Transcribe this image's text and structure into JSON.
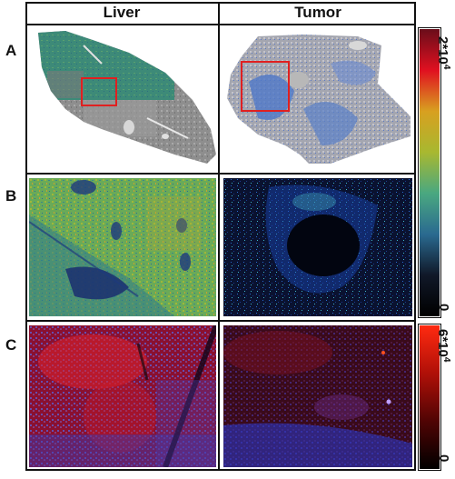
{
  "columns": {
    "left": "Liver",
    "right": "Tumor"
  },
  "rows": {
    "a": "A",
    "b": "B",
    "c": "C"
  },
  "scale_top": {
    "max_label": "2*10",
    "max_exp": "4",
    "min_label": "0",
    "stops": [
      "#6a0d1a",
      "#e01020",
      "#d8a020",
      "#a8b830",
      "#4aa880",
      "#2a6a90",
      "#101828",
      "#000000"
    ]
  },
  "scale_bottom": {
    "max_label": "6*10",
    "max_exp": "4",
    "min_label": "0",
    "stops": [
      "#ff2a10",
      "#b01008",
      "#500404",
      "#000000"
    ]
  },
  "colors": {
    "roi_box": "#e02020",
    "border": "#111111"
  }
}
